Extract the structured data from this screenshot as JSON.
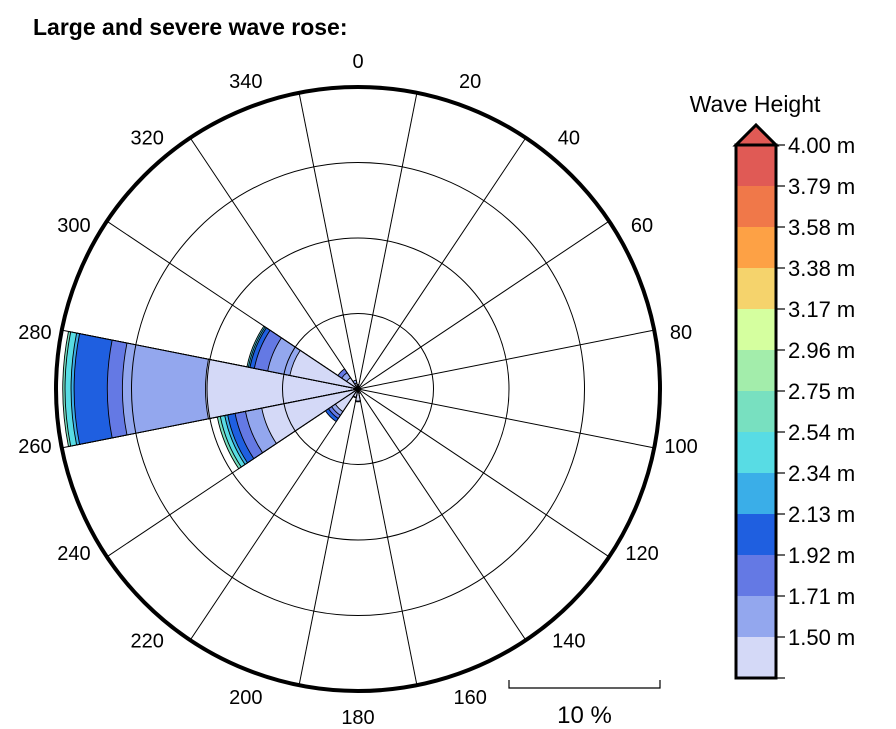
{
  "chart_data": {
    "type": "wave-rose",
    "title": "Large and severe wave rose:",
    "direction_labels": [
      "0",
      "20",
      "40",
      "60",
      "80",
      "100",
      "120",
      "140",
      "160",
      "180",
      "200",
      "220",
      "240",
      "260",
      "280",
      "300",
      "320",
      "340"
    ],
    "direction_values": [
      0,
      20,
      40,
      60,
      80,
      100,
      120,
      140,
      160,
      180,
      200,
      220,
      240,
      260,
      280,
      300,
      320,
      340
    ],
    "sector_width_deg": 22.5,
    "max_frequency_percent": 20,
    "ring_interval_percent": 5,
    "scale_bar": {
      "label": "10 %",
      "value_percent": 10
    },
    "legend": {
      "title": "Wave Height",
      "unit": "m",
      "bins": [
        {
          "label": "1.50 m",
          "color": "#d4d9f7"
        },
        {
          "label": "1.71 m",
          "color": "#93a7ee"
        },
        {
          "label": "1.92 m",
          "color": "#6479e4"
        },
        {
          "label": "2.13 m",
          "color": "#1f5fe0"
        },
        {
          "label": "2.34 m",
          "color": "#3aaee8"
        },
        {
          "label": "2.54 m",
          "color": "#58dce4"
        },
        {
          "label": "2.75 m",
          "color": "#78e0c0"
        },
        {
          "label": "2.96 m",
          "color": "#a3edab"
        },
        {
          "label": "3.17 m",
          "color": "#d5ff9f"
        },
        {
          "label": "3.38 m",
          "color": "#f5d36c"
        },
        {
          "label": "3.58 m",
          "color": "#fda145"
        },
        {
          "label": "3.79 m",
          "color": "#f07849"
        },
        {
          "label": "4.00 m",
          "color": "#e05a55"
        }
      ],
      "overflow_color": "#e05a55"
    },
    "series": [
      {
        "direction": 270,
        "cumulative_percent": [
          10.1,
          15.6,
          16.6,
          18.8,
          19.0,
          19.4,
          19.55
        ]
      },
      {
        "direction": 247.5,
        "cumulative_percent": [
          6.5,
          7.6,
          8.3,
          8.8,
          9.0,
          9.3,
          9.5
        ]
      },
      {
        "direction": 292.5,
        "cumulative_percent": [
          4.6,
          6.1,
          7.0,
          7.3,
          7.4,
          7.5
        ]
      },
      {
        "direction": 225,
        "cumulative_percent": [
          1.8,
          2.1,
          2.35,
          2.6
        ]
      },
      {
        "direction": 202.5,
        "cumulative_percent": [
          0.55,
          0.6
        ]
      },
      {
        "direction": 180,
        "cumulative_percent": [
          0.8,
          0.85
        ]
      },
      {
        "direction": 157.5,
        "cumulative_percent": [
          0.3
        ]
      },
      {
        "direction": 315,
        "cumulative_percent": [
          0.9,
          1.3,
          1.6
        ]
      },
      {
        "direction": 337.5,
        "cumulative_percent": [
          0.4,
          0.6
        ]
      },
      {
        "direction": 0,
        "cumulative_percent": [
          0.3
        ]
      },
      {
        "direction": 22.5,
        "cumulative_percent": [
          0.2
        ]
      }
    ]
  }
}
